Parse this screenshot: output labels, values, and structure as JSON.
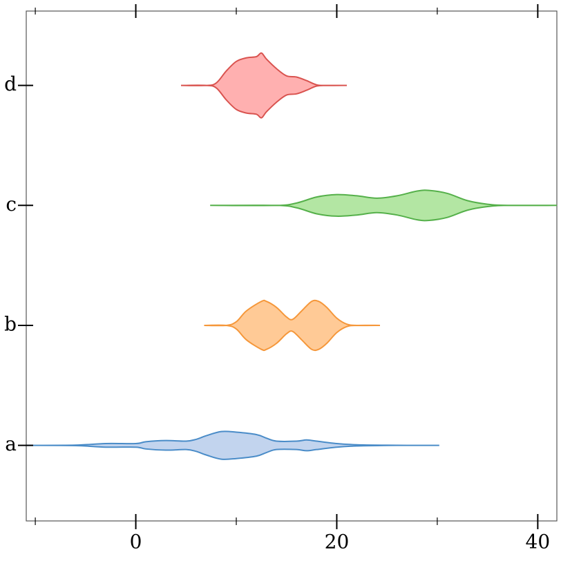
{
  "chart_data": {
    "type": "violin",
    "orientation": "horizontal",
    "categories": [
      "a",
      "b",
      "c",
      "d"
    ],
    "series": [
      {
        "color": "#4a8cc8",
        "fill": "#c2d4ee",
        "x": [
          -10.9,
          -6,
          -3,
          0,
          1,
          3,
          5,
          6,
          7,
          8.5,
          10,
          12,
          13,
          14,
          16,
          17,
          18,
          20,
          22,
          25,
          27,
          30.2
        ],
        "widths": [
          0,
          0.002,
          0.015,
          0.015,
          0.03,
          0.04,
          0.035,
          0.05,
          0.08,
          0.115,
          0.11,
          0.09,
          0.06,
          0.035,
          0.035,
          0.045,
          0.035,
          0.015,
          0.005,
          0.001,
          0,
          0
        ]
      },
      {
        "color": "#f5973a",
        "fill": "#ffca96",
        "x": [
          6.8,
          9,
          10,
          11,
          12.5,
          13,
          14,
          15,
          15.6,
          16.5,
          17.5,
          18.2,
          19,
          20,
          21,
          22,
          24.3
        ],
        "widths": [
          0,
          0,
          0.03,
          0.12,
          0.2,
          0.2,
          0.15,
          0.07,
          0.05,
          0.12,
          0.2,
          0.2,
          0.15,
          0.06,
          0.01,
          0,
          0
        ]
      },
      {
        "color": "#55b04a",
        "fill": "#b3e6a3",
        "x": [
          7.4,
          14,
          16,
          18,
          20,
          22,
          24,
          26,
          28,
          29.2,
          31,
          33,
          35,
          37,
          41.9
        ],
        "widths": [
          0,
          0,
          0.02,
          0.07,
          0.09,
          0.08,
          0.06,
          0.08,
          0.12,
          0.125,
          0.1,
          0.04,
          0.01,
          0,
          0
        ]
      },
      {
        "color": "#d9534f",
        "fill": "#ffb0b0",
        "x": [
          4.5,
          7,
          8,
          9,
          10,
          11,
          12,
          12.5,
          13,
          14,
          15,
          16,
          17,
          18,
          19,
          21
        ],
        "widths": [
          0,
          0,
          0.02,
          0.12,
          0.2,
          0.23,
          0.24,
          0.27,
          0.22,
          0.14,
          0.08,
          0.07,
          0.04,
          0.005,
          0,
          0
        ]
      }
    ],
    "xlim": [
      -10.9,
      41.9
    ],
    "xticks": [
      0,
      20,
      40
    ],
    "xminorticks": [
      -10,
      10,
      30
    ],
    "ylim": [
      -0.63,
      3.62
    ]
  }
}
